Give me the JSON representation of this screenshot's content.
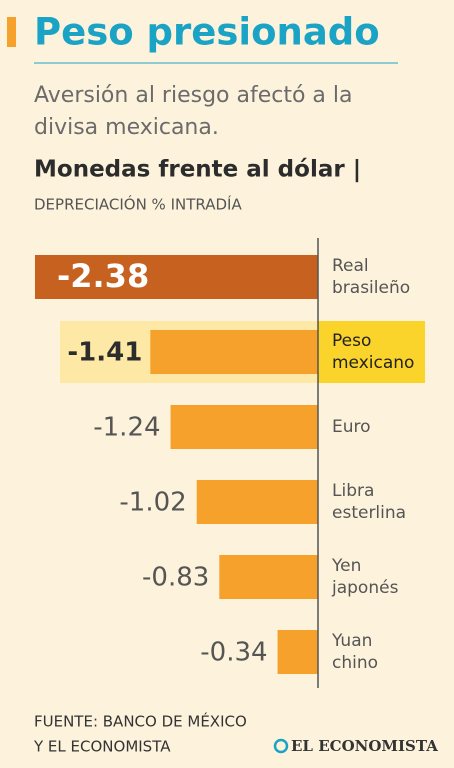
{
  "chart_data": {
    "type": "hbar",
    "title": "Peso presionado",
    "subtitle": [
      "Aversión al riesgo afectó a la",
      "divisa mexicana."
    ],
    "chart_title": "Monedas frente al dólar |",
    "unit_label": "DEPRECIACIÓN % INTRADÍA",
    "categories": [
      "Real brasileño",
      "Peso mexicano",
      "Euro",
      "Libra esterlina",
      "Yen japonés",
      "Yuan chino"
    ],
    "values": [
      -2.38,
      -1.41,
      -1.24,
      -1.02,
      -0.83,
      -0.34
    ],
    "colors": [
      "#c6611f",
      "#f5a12b",
      "#f5a12b",
      "#f5a12b",
      "#f5a12b",
      "#f5a12b"
    ],
    "highlight": 1,
    "xlim": [
      -2.4,
      0
    ],
    "source": [
      "FUENTE: BANCO DE MÉXICO",
      "Y EL ECONOMISTA"
    ],
    "brand": "EL ECONOMISTA"
  }
}
